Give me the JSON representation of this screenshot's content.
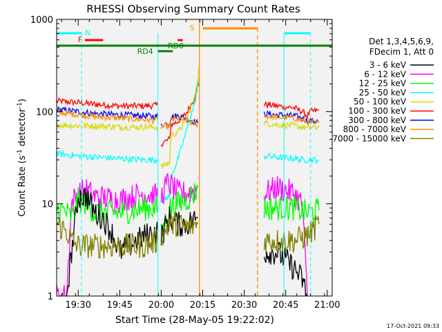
{
  "chart_data": {
    "type": "line",
    "title": "RHESSI Observing Summary Count Rates",
    "xlabel": "Start Time (28-May-05 19:22:02)",
    "ylabel_main": "Count Rate (s",
    "ylabel_sup1": "-1",
    "ylabel_mid": " detector",
    "ylabel_sup2": "-1",
    "ylabel_end": ")",
    "y_scale": "log",
    "ylim": [
      1,
      1000
    ],
    "xlim_minutes": [
      19.37,
      21.03
    ],
    "x_ticks": [
      {
        "t": 19.5,
        "label": "19:30"
      },
      {
        "t": 19.75,
        "label": "19:45"
      },
      {
        "t": 20.0,
        "label": "20:00"
      },
      {
        "t": 20.25,
        "label": "20:15"
      },
      {
        "t": 20.5,
        "label": "20:30"
      },
      {
        "t": 20.75,
        "label": "20:45"
      },
      {
        "t": 21.0,
        "label": "21:00"
      }
    ],
    "y_ticks": [
      {
        "v": 1,
        "label": "1"
      },
      {
        "v": 10,
        "label": "10"
      },
      {
        "v": 100,
        "label": "100"
      },
      {
        "v": 1000,
        "label": "1000"
      }
    ],
    "legend": {
      "header1": "Det 1,3,4,5,6,9,",
      "header2": "FDecim 1, Att 0",
      "entries": [
        {
          "label": "3 - 6 keV",
          "color": "#000000"
        },
        {
          "label": "6 - 12 keV",
          "color": "#ff00ff"
        },
        {
          "label": "12 - 25 keV",
          "color": "#00ff00"
        },
        {
          "label": "25 - 50 keV",
          "color": "#00ffff"
        },
        {
          "label": "50 - 100 keV",
          "color": "#d9d900"
        },
        {
          "label": "100 - 300 keV",
          "color": "#ff0000"
        },
        {
          "label": "300 - 800 keV",
          "color": "#0000ff"
        },
        {
          "label": "800 - 7000 keV",
          "color": "#ff8c00"
        },
        {
          "label": "7000 - 15000 keV",
          "color": "#808000"
        }
      ]
    },
    "series": [
      {
        "name": "100 - 300 keV",
        "color": "#ff0000",
        "segments": [
          [
            [
              19.37,
              130
            ],
            [
              19.5,
              125
            ],
            [
              19.6,
              120
            ],
            [
              19.75,
              115
            ],
            [
              19.9,
              115
            ],
            [
              19.98,
              117
            ]
          ],
          [
            [
              20.0,
              45
            ],
            [
              20.05,
              50
            ],
            [
              20.06,
              72
            ],
            [
              20.1,
              78
            ],
            [
              20.15,
              95
            ],
            [
              20.2,
              140
            ],
            [
              20.23,
              210
            ]
          ],
          [
            [
              20.62,
              120
            ],
            [
              20.7,
              115
            ],
            [
              20.8,
              110
            ],
            [
              20.85,
              100
            ],
            [
              20.88,
              90
            ],
            [
              20.9,
              100
            ],
            [
              20.95,
              103
            ]
          ]
        ]
      },
      {
        "name": "300 - 800 keV",
        "color": "#0000ff",
        "segments": [
          [
            [
              19.37,
              105
            ],
            [
              19.5,
              100
            ],
            [
              19.6,
              95
            ],
            [
              19.75,
              92
            ],
            [
              19.9,
              90
            ],
            [
              19.98,
              88
            ]
          ],
          [
            [
              20.0,
              72
            ],
            [
              20.05,
              75
            ],
            [
              20.06,
              88
            ],
            [
              20.1,
              90
            ],
            [
              20.15,
              85
            ],
            [
              20.22,
              75
            ]
          ],
          [
            [
              20.62,
              95
            ],
            [
              20.7,
              92
            ],
            [
              20.8,
              90
            ],
            [
              20.85,
              85
            ],
            [
              20.88,
              80
            ],
            [
              20.95,
              78
            ]
          ]
        ]
      },
      {
        "name": "800 - 7000 keV",
        "color": "#ff8c00",
        "segments": [
          [
            [
              19.37,
              98
            ],
            [
              19.5,
              93
            ],
            [
              19.6,
              88
            ],
            [
              19.75,
              85
            ],
            [
              19.9,
              82
            ],
            [
              19.98,
              80
            ]
          ],
          [
            [
              20.0,
              68
            ],
            [
              20.05,
              70
            ],
            [
              20.06,
              82
            ],
            [
              20.1,
              84
            ],
            [
              20.15,
              80
            ],
            [
              20.22,
              72
            ]
          ],
          [
            [
              20.62,
              90
            ],
            [
              20.7,
              87
            ],
            [
              20.8,
              85
            ],
            [
              20.85,
              80
            ],
            [
              20.88,
              77
            ],
            [
              20.95,
              76
            ]
          ]
        ]
      },
      {
        "name": "50 - 100 keV",
        "color": "#d9d900",
        "segments": [
          [
            [
              19.37,
              72
            ],
            [
              19.5,
              70
            ],
            [
              19.6,
              70
            ],
            [
              19.75,
              68
            ],
            [
              19.9,
              68
            ],
            [
              19.98,
              68
            ]
          ],
          [
            [
              20.0,
              25
            ],
            [
              20.05,
              28
            ],
            [
              20.06,
              55
            ],
            [
              20.1,
              60
            ],
            [
              20.15,
              80
            ],
            [
              20.2,
              140
            ],
            [
              20.23,
              310
            ]
          ],
          [
            [
              20.62,
              75
            ],
            [
              20.7,
              72
            ],
            [
              20.8,
              70
            ],
            [
              20.85,
              68
            ],
            [
              20.88,
              67
            ],
            [
              20.95,
              68
            ]
          ]
        ]
      },
      {
        "name": "25 - 50 keV",
        "color": "#00ffff",
        "segments": [
          [
            [
              19.37,
              35
            ],
            [
              19.5,
              33
            ],
            [
              19.6,
              32
            ],
            [
              19.75,
              31
            ],
            [
              19.9,
              30
            ],
            [
              19.98,
              30
            ]
          ],
          [
            [
              20.0,
              11
            ],
            [
              20.05,
              12
            ],
            [
              20.06,
              20
            ],
            [
              20.1,
              30
            ],
            [
              20.15,
              60
            ],
            [
              20.2,
              120
            ],
            [
              20.23,
              230
            ]
          ],
          [
            [
              20.62,
              33
            ],
            [
              20.7,
              32
            ],
            [
              20.8,
              31
            ],
            [
              20.85,
              30
            ],
            [
              20.88,
              30
            ],
            [
              20.95,
              30
            ]
          ]
        ]
      },
      {
        "name": "6 - 12 keV",
        "color": "#ff00ff",
        "segments": [
          [
            [
              19.37,
              1
            ],
            [
              19.43,
              1
            ],
            [
              19.46,
              10
            ],
            [
              19.5,
              13
            ],
            [
              19.55,
              14
            ],
            [
              19.6,
              12
            ],
            [
              19.75,
              11
            ],
            [
              19.9,
              13
            ],
            [
              19.98,
              12
            ]
          ],
          [
            [
              20.0,
              12
            ],
            [
              20.04,
              17
            ],
            [
              20.1,
              13
            ],
            [
              20.15,
              13
            ],
            [
              20.2,
              14
            ],
            [
              20.22,
              15
            ]
          ],
          [
            [
              20.62,
              13
            ],
            [
              20.7,
              15
            ],
            [
              20.8,
              13
            ],
            [
              20.85,
              10
            ],
            [
              20.88,
              1
            ]
          ]
        ]
      },
      {
        "name": "12 - 25 keV",
        "color": "#00ff00",
        "segments": [
          [
            [
              19.37,
              9
            ],
            [
              19.43,
              8
            ],
            [
              19.46,
              7
            ],
            [
              19.5,
              11
            ],
            [
              19.55,
              10
            ],
            [
              19.6,
              8
            ],
            [
              19.75,
              8
            ],
            [
              19.9,
              9
            ],
            [
              19.98,
              9
            ]
          ],
          [
            [
              20.0,
              4.5
            ],
            [
              20.05,
              9
            ],
            [
              20.1,
              10
            ],
            [
              20.15,
              11
            ],
            [
              20.2,
              13
            ],
            [
              20.22,
              15
            ]
          ],
          [
            [
              20.62,
              9
            ],
            [
              20.7,
              9
            ],
            [
              20.8,
              9
            ],
            [
              20.88,
              8
            ],
            [
              20.95,
              8.5
            ]
          ]
        ]
      },
      {
        "name": "3 - 6 keV",
        "color": "#000000",
        "segments": [
          [
            [
              19.43,
              1
            ],
            [
              19.46,
              3
            ],
            [
              19.5,
              12
            ],
            [
              19.55,
              12
            ],
            [
              19.6,
              8
            ],
            [
              19.65,
              7
            ],
            [
              19.7,
              5
            ],
            [
              19.75,
              3
            ],
            [
              19.9,
              4.5
            ],
            [
              19.98,
              5
            ]
          ],
          [
            [
              20.0,
              4.5
            ],
            [
              20.05,
              7
            ],
            [
              20.1,
              6
            ],
            [
              20.15,
              6
            ],
            [
              20.22,
              7
            ]
          ],
          [
            [
              20.62,
              3
            ],
            [
              20.7,
              3
            ],
            [
              20.8,
              2
            ],
            [
              20.85,
              1.5
            ],
            [
              20.88,
              1
            ]
          ]
        ]
      },
      {
        "name": "7000 - 15000 keV",
        "color": "#808000",
        "segments": [
          [
            [
              19.37,
              6
            ],
            [
              19.43,
              5
            ],
            [
              19.46,
              4
            ],
            [
              19.5,
              3.5
            ],
            [
              19.6,
              3.5
            ],
            [
              19.75,
              3.5
            ],
            [
              19.9,
              3.5
            ],
            [
              19.98,
              4
            ]
          ],
          [
            [
              20.0,
              4.5
            ],
            [
              20.05,
              6
            ],
            [
              20.1,
              6
            ],
            [
              20.15,
              5.5
            ],
            [
              20.22,
              6
            ]
          ],
          [
            [
              20.62,
              4
            ],
            [
              20.7,
              4
            ],
            [
              20.8,
              4
            ],
            [
              20.88,
              4.5
            ],
            [
              20.95,
              6
            ]
          ]
        ]
      }
    ],
    "annotations": {
      "N": {
        "label": "N",
        "color": "#00ffff"
      },
      "F": {
        "label": "F",
        "color": "#ff0000"
      },
      "S": {
        "label": "S",
        "color": "#ff8c00"
      },
      "RD4": {
        "label": "RD4",
        "color": "#008000"
      },
      "RD0": {
        "label": "RD0",
        "color": "#008000"
      }
    },
    "footer_date": "17-Oct-2021 09:33"
  }
}
